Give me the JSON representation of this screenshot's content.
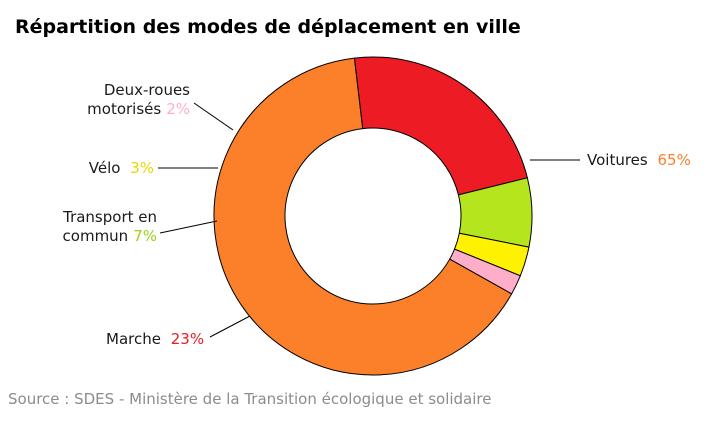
{
  "chart_data": {
    "type": "pie",
    "variant": "donut",
    "title": "Répartition des modes de déplacement en ville",
    "source": "Source : SDES - Ministère de la Transition écologique et solidaire",
    "slices": [
      {
        "label": "Voitures",
        "value": 65,
        "value_label": "65%",
        "color": "#fc7f2a"
      },
      {
        "label": "Marche",
        "value": 23,
        "value_label": "23%",
        "color": "#ed1c24"
      },
      {
        "label": "Transport en commun",
        "value": 7,
        "value_label": "7%",
        "color": "#b5e61d"
      },
      {
        "label": "Vélo",
        "value": 3,
        "value_label": "3%",
        "color": "#fff200"
      },
      {
        "label": "Deux-roues motorisés",
        "value": 2,
        "value_label": "2%",
        "color": "#ffaec9"
      }
    ]
  }
}
